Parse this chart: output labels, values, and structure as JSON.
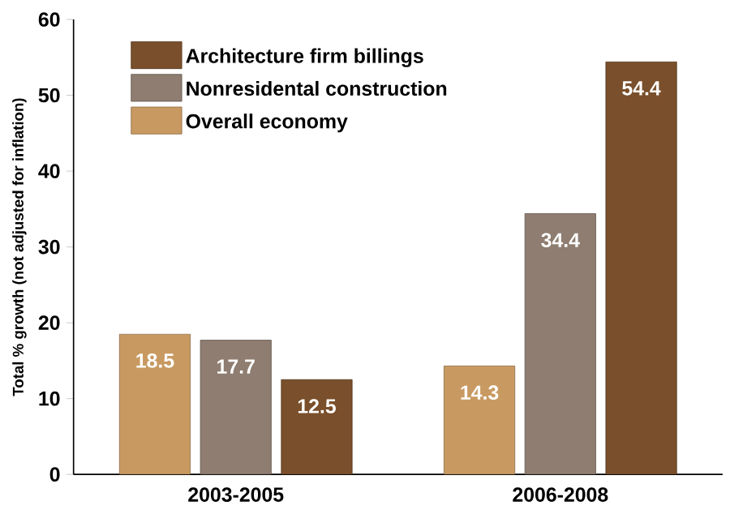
{
  "chart_data": {
    "type": "bar",
    "ylabel": "Total % growth (not adjusted for inflation)",
    "categories": [
      "2003-2005",
      "2006-2008"
    ],
    "series": [
      {
        "name": "Overall economy",
        "color": "#c89a62",
        "values": [
          18.5,
          14.3
        ]
      },
      {
        "name": "Nonresidental construction",
        "color": "#8e7d70",
        "values": [
          17.7,
          34.4
        ]
      },
      {
        "name": "Architecture firm billings",
        "color": "#7a4f2b",
        "values": [
          12.5,
          54.4
        ]
      }
    ],
    "ylim": [
      0,
      60
    ],
    "yticks": [
      0,
      10,
      20,
      30,
      40,
      50,
      60
    ],
    "grid": false,
    "legend": "top left",
    "data_labels": true
  }
}
